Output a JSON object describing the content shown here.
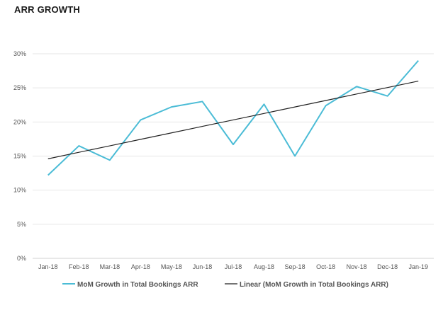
{
  "header": {
    "title": "ARR GROWTH"
  },
  "chart_data": {
    "type": "line",
    "title": "ARR GROWTH",
    "categories": [
      "Jan-18",
      "Feb-18",
      "Mar-18",
      "Apr-18",
      "May-18",
      "Jun-18",
      "Jul-18",
      "Aug-18",
      "Sep-18",
      "Oct-18",
      "Nov-18",
      "Dec-18",
      "Jan-19"
    ],
    "y_ticks": [
      "0%",
      "5%",
      "10%",
      "15%",
      "20%",
      "25%",
      "30%"
    ],
    "ylim": [
      0,
      30
    ],
    "grid": true,
    "legend_position": "bottom",
    "series": [
      {
        "name": "MoM Growth in Total Bookings ARR",
        "color": "#4bbcd6",
        "values": [
          12.2,
          16.5,
          14.4,
          20.3,
          22.2,
          23.0,
          16.7,
          22.6,
          15.0,
          22.4,
          25.2,
          23.8,
          29.0
        ]
      },
      {
        "name": "Linear (MoM Growth in Total Bookings ARR)",
        "color": "#222222",
        "values": [
          14.6,
          15.55,
          16.5,
          17.45,
          18.4,
          19.35,
          20.3,
          21.25,
          22.2,
          23.15,
          24.1,
          25.05,
          26.0
        ]
      }
    ]
  }
}
